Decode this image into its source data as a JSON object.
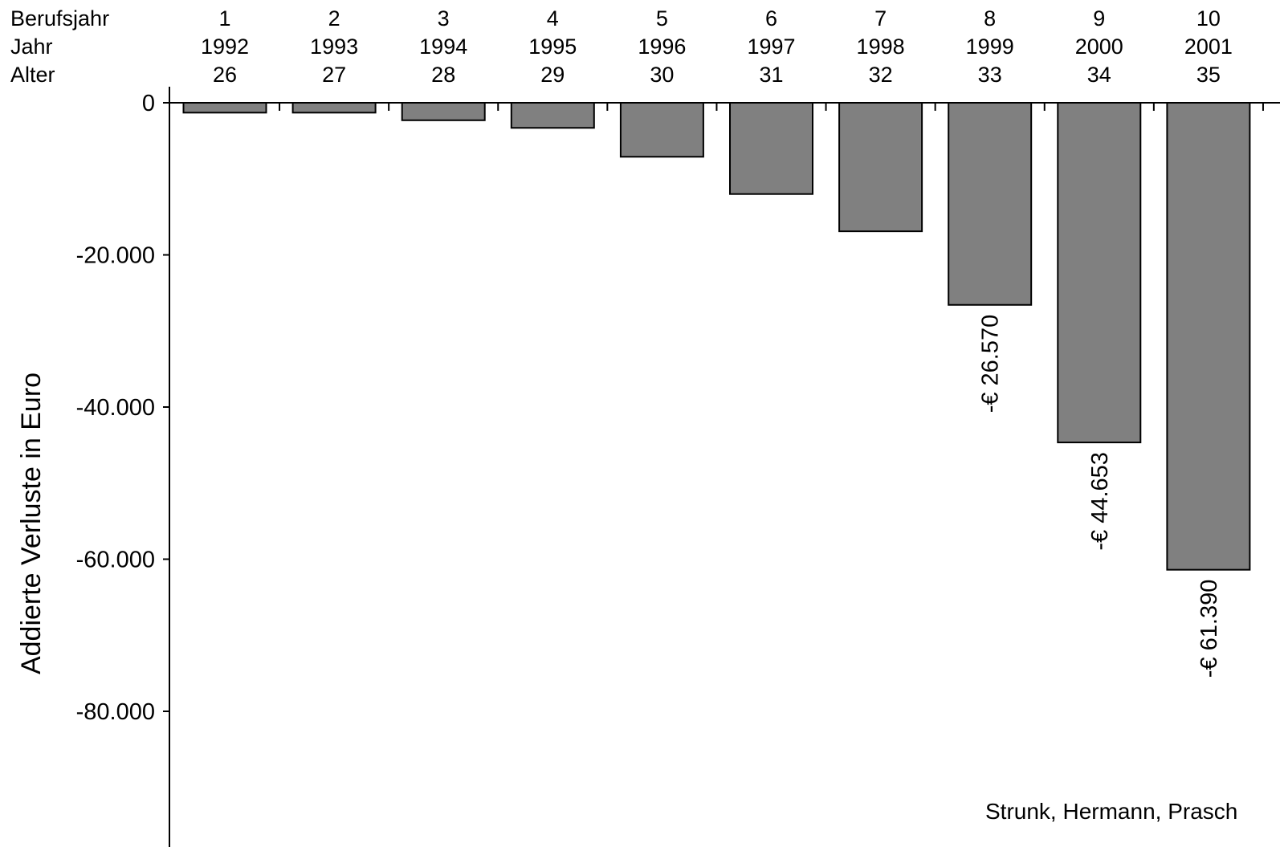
{
  "chart_data": {
    "type": "bar",
    "ylabel": "Addierte Verluste in Euro",
    "header_rows": [
      {
        "label": "Berufsjahr",
        "values": [
          "1",
          "2",
          "3",
          "4",
          "5",
          "6",
          "7",
          "8",
          "9",
          "10"
        ]
      },
      {
        "label": "Jahr",
        "values": [
          "1992",
          "1993",
          "1994",
          "1995",
          "1996",
          "1997",
          "1998",
          "1999",
          "2000",
          "2001"
        ]
      },
      {
        "label": "Alter",
        "values": [
          "26",
          "27",
          "28",
          "29",
          "30",
          "31",
          "32",
          "33",
          "34",
          "35"
        ]
      }
    ],
    "categories": [
      "1",
      "2",
      "3",
      "4",
      "5",
      "6",
      "7",
      "8",
      "9",
      "10"
    ],
    "values": [
      -1300,
      -1300,
      -2300,
      -3300,
      -7100,
      -12000,
      -16900,
      -26570,
      -44653,
      -61390
    ],
    "data_labels": [
      "",
      "",
      "",
      "",
      "",
      "",
      "",
      "-€ 26.570",
      "-€ 44.653",
      "-€ 61.390"
    ],
    "ylim": [
      -95000,
      0
    ],
    "yticks": [
      0,
      -20000,
      -40000,
      -60000,
      -80000
    ],
    "ytick_labels": [
      "0",
      "-20.000",
      "-40.000",
      "-60.000",
      "-80.000"
    ],
    "grid": false,
    "bar_color": "#808080",
    "bar_edge_color": "#000000"
  },
  "source_note": "Strunk, Hermann, Prasch"
}
